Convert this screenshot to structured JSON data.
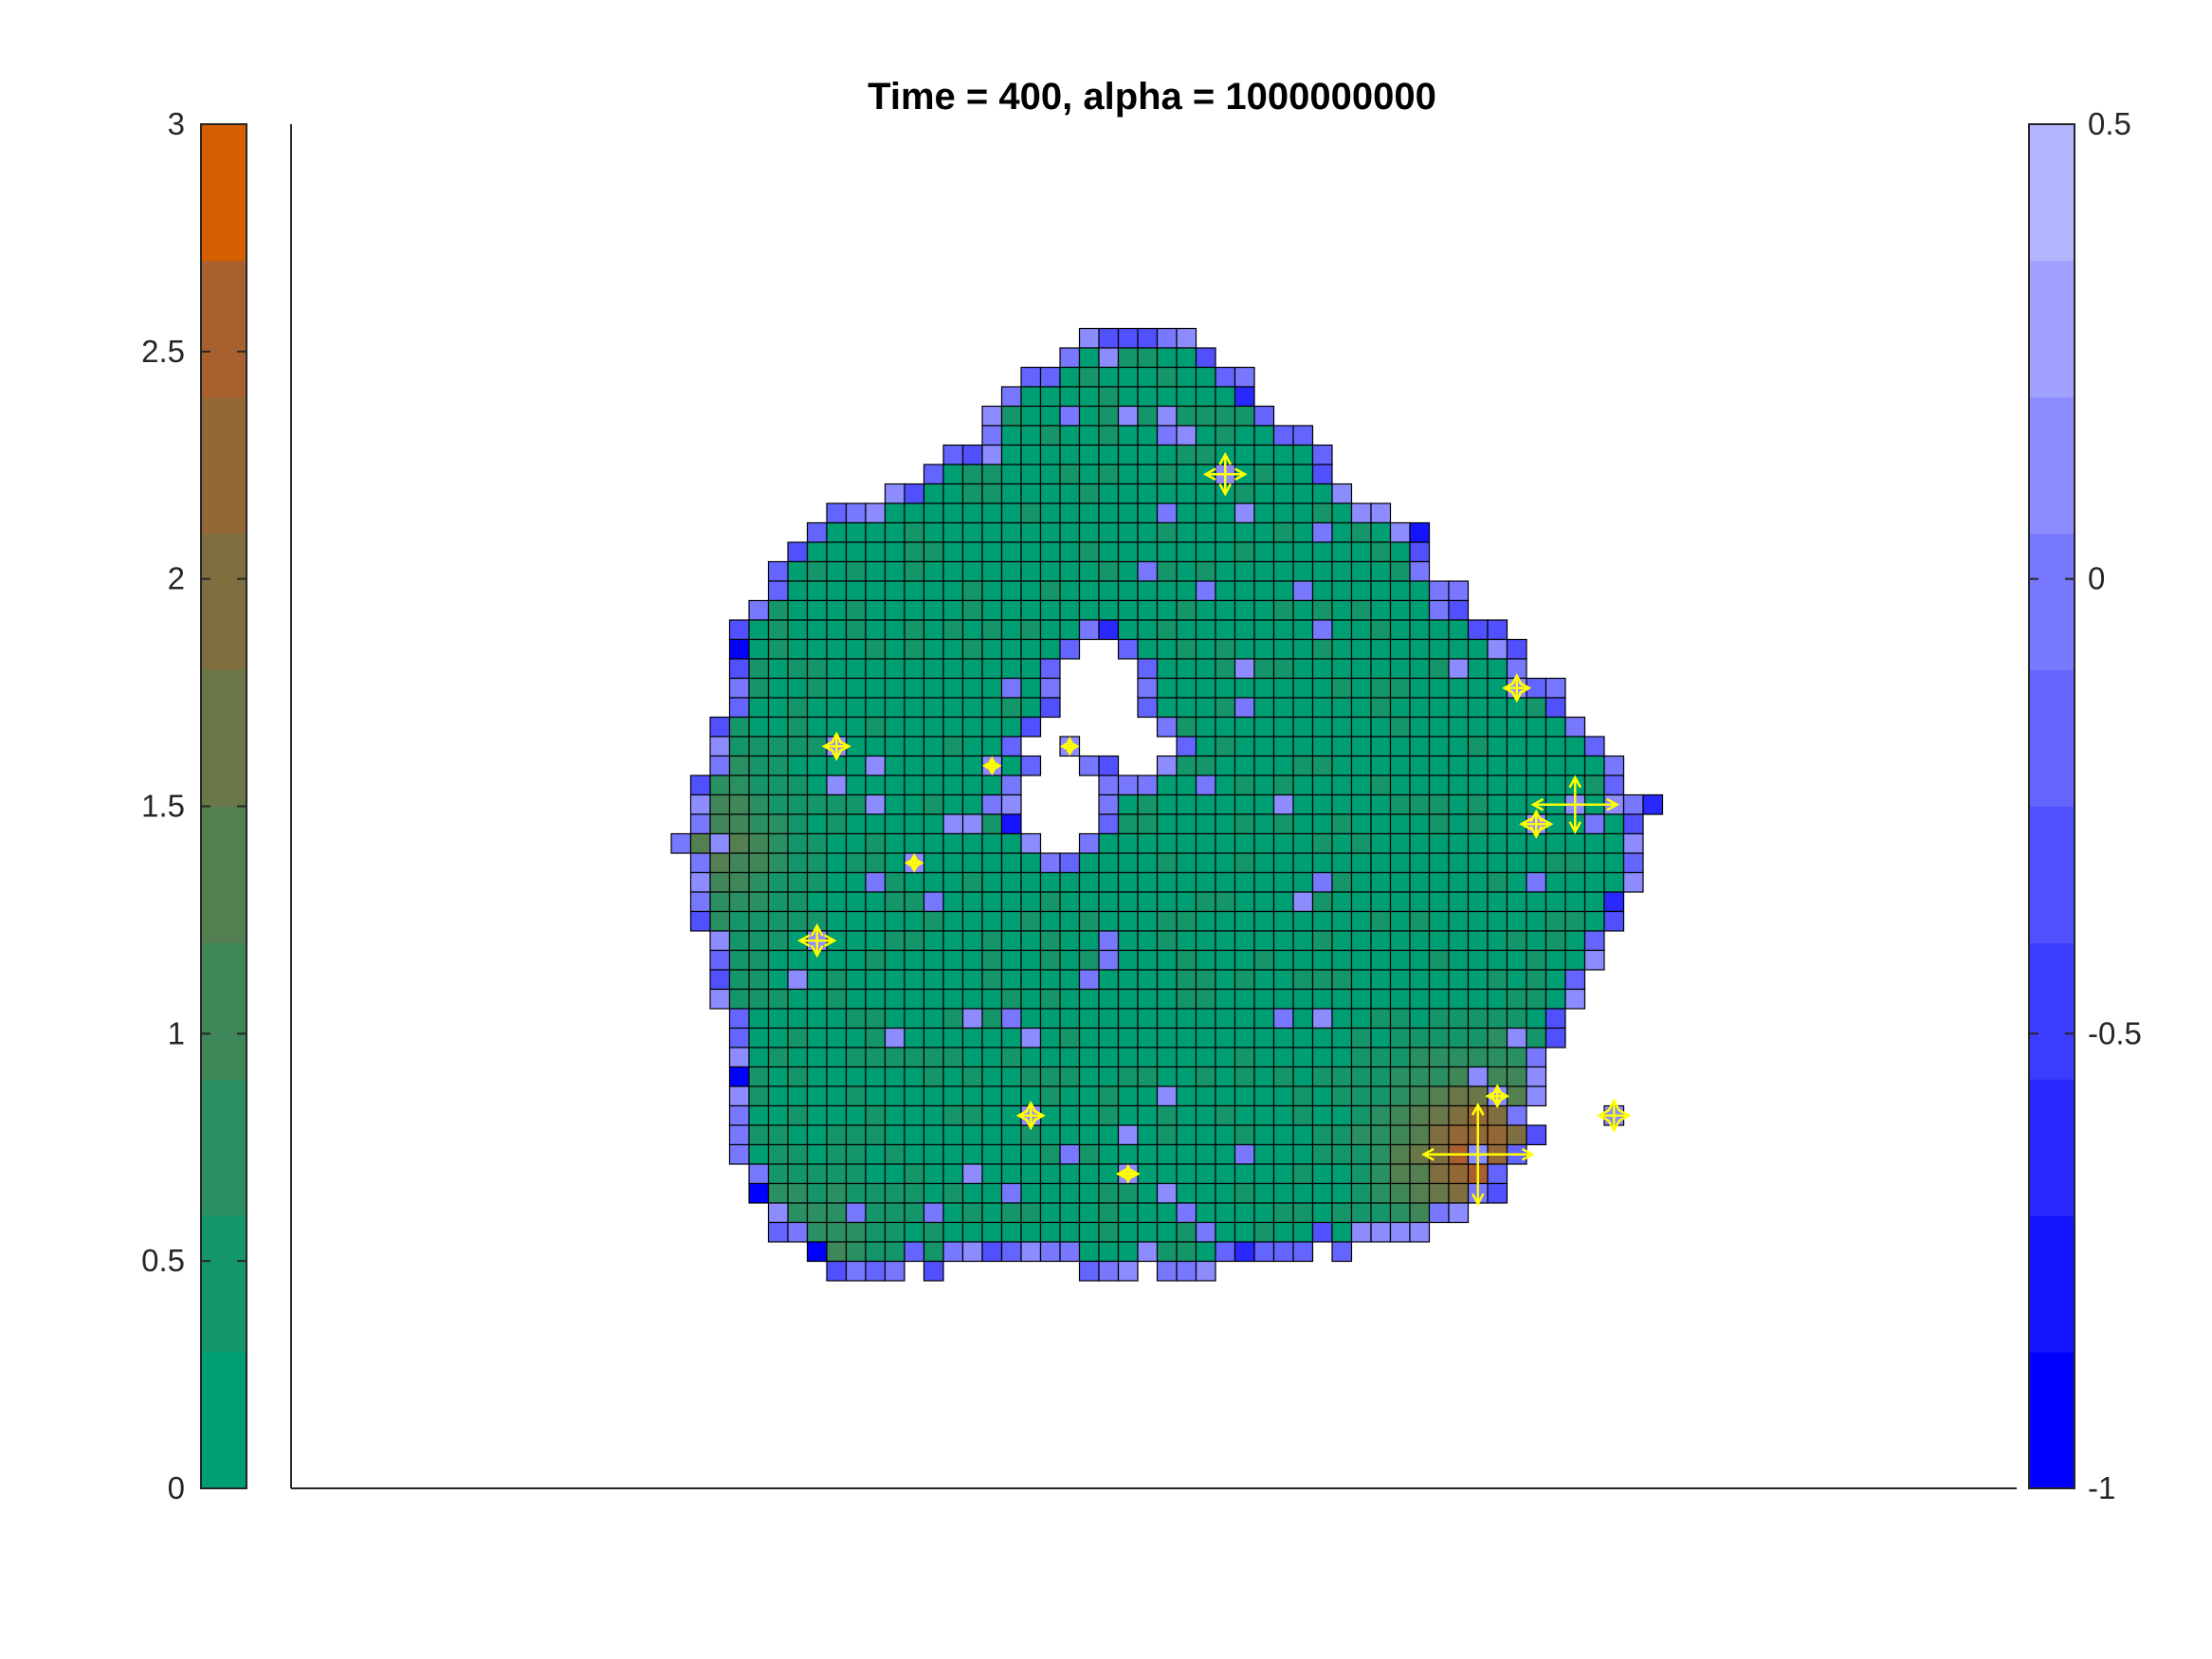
{
  "chart_data": {
    "type": "heatmap",
    "title": "Time = 400, alpha = 1000000000",
    "xlabel": "",
    "ylabel": "",
    "left_colorbar": {
      "range": [
        0,
        3
      ],
      "ticks": [
        0,
        0.5,
        1,
        1.5,
        2,
        2.5,
        3
      ],
      "tick_labels": [
        "0",
        "0.5",
        "1",
        "1.5",
        "2",
        "2.5",
        "3"
      ],
      "levels": 10,
      "colors": [
        "#009e73",
        "#15966a",
        "#2a8f62",
        "#3f8759",
        "#547f51",
        "#6a7748",
        "#7f6f40",
        "#946737",
        "#a9602f",
        "#d55e00"
      ]
    },
    "right_colorbar": {
      "range": [
        -1,
        0.5
      ],
      "ticks": [
        -1,
        -0.5,
        0,
        0.5
      ],
      "tick_labels": [
        "-1",
        "-0.5",
        "0",
        "0.5"
      ],
      "levels": 10,
      "colors": [
        "#0000ff",
        "#1414ff",
        "#2828ff",
        "#3c3cff",
        "#5050ff",
        "#6464ff",
        "#7878ff",
        "#8c8cff",
        "#a0a0ff",
        "#b4b4ff"
      ]
    },
    "field": {
      "description_free": true,
      "grid": "square lattice cells with dark edges",
      "cell_body_value_approx": 0.1,
      "boundary_value_approx": -0.1,
      "hot_spots": [
        {
          "col": 45,
          "row": 43,
          "value": 2.3
        },
        {
          "col": 63,
          "row": 15,
          "value": 1.6
        },
        {
          "col": 5,
          "row": 27,
          "value": 1.1
        },
        {
          "col": 10,
          "row": 49,
          "value": 0.9
        }
      ]
    },
    "vectors": [
      {
        "col": 32,
        "row": 8,
        "ux": 0.8,
        "uy": 0.8
      },
      {
        "col": 45,
        "row": 43,
        "ux": 2.2,
        "uy": 2.0
      },
      {
        "col": 47,
        "row": 19,
        "ux": 0.5,
        "uy": 0.5
      },
      {
        "col": 50,
        "row": 25,
        "ux": 1.7,
        "uy": 1.1
      },
      {
        "col": 48,
        "row": 26,
        "ux": 0.6,
        "uy": 0.5
      },
      {
        "col": 11,
        "row": 32,
        "ux": 0.7,
        "uy": 0.6
      },
      {
        "col": 12,
        "row": 22,
        "ux": 0.5,
        "uy": 0.5
      },
      {
        "col": 22,
        "row": 41,
        "ux": 0.5,
        "uy": 0.5
      },
      {
        "col": 52,
        "row": 41,
        "ux": 0.6,
        "uy": 0.6
      },
      {
        "col": 46,
        "row": 40,
        "ux": 0.4,
        "uy": 0.4
      },
      {
        "col": 27,
        "row": 44,
        "ux": 0.4,
        "uy": 0.3
      },
      {
        "col": 16,
        "row": 28,
        "ux": 0.3,
        "uy": 0.3
      },
      {
        "col": 20,
        "row": 23,
        "ux": 0.3,
        "uy": 0.3
      },
      {
        "col": 24,
        "row": 22,
        "ux": 0.3,
        "uy": 0.3
      }
    ]
  }
}
